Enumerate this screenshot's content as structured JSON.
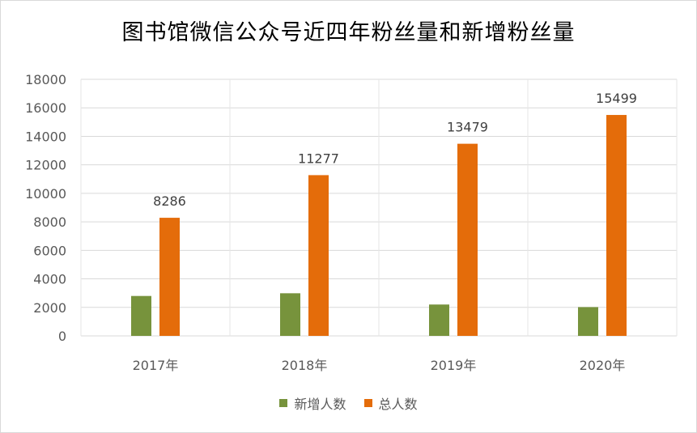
{
  "chart_data": {
    "type": "bar",
    "title": "图书馆微信公众号近四年粉丝量和新增粉丝量",
    "categories": [
      "2017年",
      "2018年",
      "2019年",
      "2020年"
    ],
    "series": [
      {
        "name": "新增人数",
        "values": [
          2800,
          2990,
          2200,
          2020
        ],
        "color": "#77933c"
      },
      {
        "name": "总人数",
        "values": [
          8286,
          11277,
          13479,
          15499
        ],
        "color": "#e46c0a",
        "data_labels": [
          "8286",
          "11277",
          "13479",
          "15499"
        ]
      }
    ],
    "ylim": [
      0,
      18000
    ],
    "yticks": [
      0,
      2000,
      4000,
      6000,
      8000,
      10000,
      12000,
      14000,
      16000,
      18000
    ],
    "grid": true,
    "legend_position": "bottom",
    "xlabel": "",
    "ylabel": ""
  }
}
